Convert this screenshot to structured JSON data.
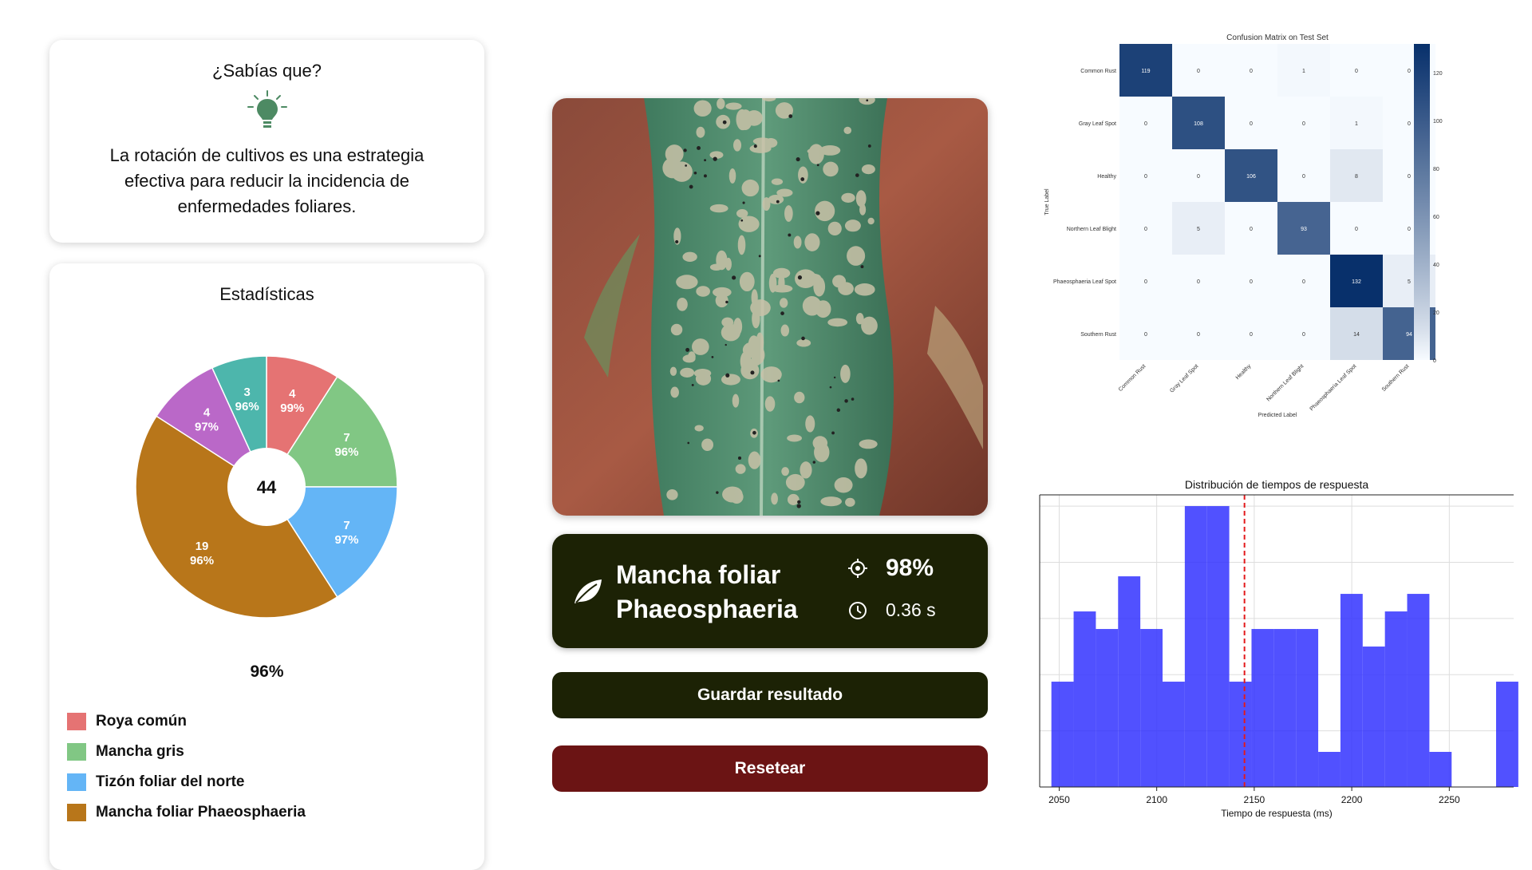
{
  "tip": {
    "title": "¿Sabías que?",
    "icon": "lightbulb-icon",
    "text": "La rotación de cultivos es una estrategia efectiva para reducir la incidencia de enfermedades foliares."
  },
  "stats": {
    "title": "Estadísticas",
    "center_total": "44",
    "overall_pct": "96%",
    "legend": [
      {
        "label": "Roya común",
        "color": "#e57373"
      },
      {
        "label": "Mancha gris",
        "color": "#81c784"
      },
      {
        "label": "Tizón foliar del norte",
        "color": "#64b5f6"
      },
      {
        "label": "Mancha foliar Phaeosphaeria",
        "color": "#b8761a"
      }
    ]
  },
  "result": {
    "icon": "leaf-icon",
    "disease_line1": "Mancha foliar",
    "disease_line2": "Phaeosphaeria",
    "confidence": "98%",
    "confidence_icon": "target-icon",
    "time": "0.36 s",
    "time_icon": "clock-icon"
  },
  "buttons": {
    "save": "Guardar resultado",
    "reset": "Resetear"
  },
  "chart_data": [
    {
      "type": "pie",
      "donut": true,
      "center_label": "44",
      "slices": [
        {
          "count": 4,
          "pct": "99%",
          "color": "#e57373"
        },
        {
          "count": 7,
          "pct": "96%",
          "color": "#81c784"
        },
        {
          "count": 7,
          "pct": "97%",
          "color": "#64b5f6"
        },
        {
          "count": 19,
          "pct": "96%",
          "color": "#b8761a"
        },
        {
          "count": 4,
          "pct": "97%",
          "color": "#ba68c8"
        },
        {
          "count": 3,
          "pct": "96%",
          "color": "#4db6ac"
        }
      ]
    },
    {
      "type": "heatmap",
      "title": "Confusion Matrix on Test Set",
      "xlabel": "Predicted Label",
      "ylabel": "True Label",
      "labels": [
        "Common Rust",
        "Gray Leaf Spot",
        "Healthy",
        "Northern Leaf Blight",
        "Phaeosphaeria Leaf Spot",
        "Southern Rust"
      ],
      "matrix": [
        [
          119,
          0,
          0,
          1,
          0,
          0
        ],
        [
          0,
          108,
          0,
          0,
          1,
          0
        ],
        [
          0,
          0,
          106,
          0,
          8,
          0
        ],
        [
          0,
          5,
          0,
          93,
          0,
          0
        ],
        [
          0,
          0,
          0,
          0,
          132,
          5
        ],
        [
          0,
          0,
          0,
          0,
          14,
          94
        ]
      ],
      "colorbar_ticks": [
        0,
        20,
        40,
        60,
        80,
        100,
        120
      ],
      "vmax": 132
    },
    {
      "type": "bar",
      "title": "Distribución de tiempos de respuesta",
      "xlabel": "Tiempo de respuesta (ms)",
      "ylabel": "",
      "xlim": [
        2040,
        2283
      ],
      "xticks": [
        2050,
        2100,
        2150,
        2200,
        2250
      ],
      "bin_width": 11.4,
      "bin_start": 2046,
      "counts": [
        3,
        5,
        4.5,
        6,
        4.5,
        3,
        8,
        8,
        3,
        4.5,
        4.5,
        4.5,
        1,
        5.5,
        4,
        5,
        5.5,
        1,
        0,
        0,
        3
      ],
      "grid": true,
      "mean_line": 2145,
      "bar_color": "#3333ff",
      "mean_line_color": "#e31a1c"
    }
  ]
}
